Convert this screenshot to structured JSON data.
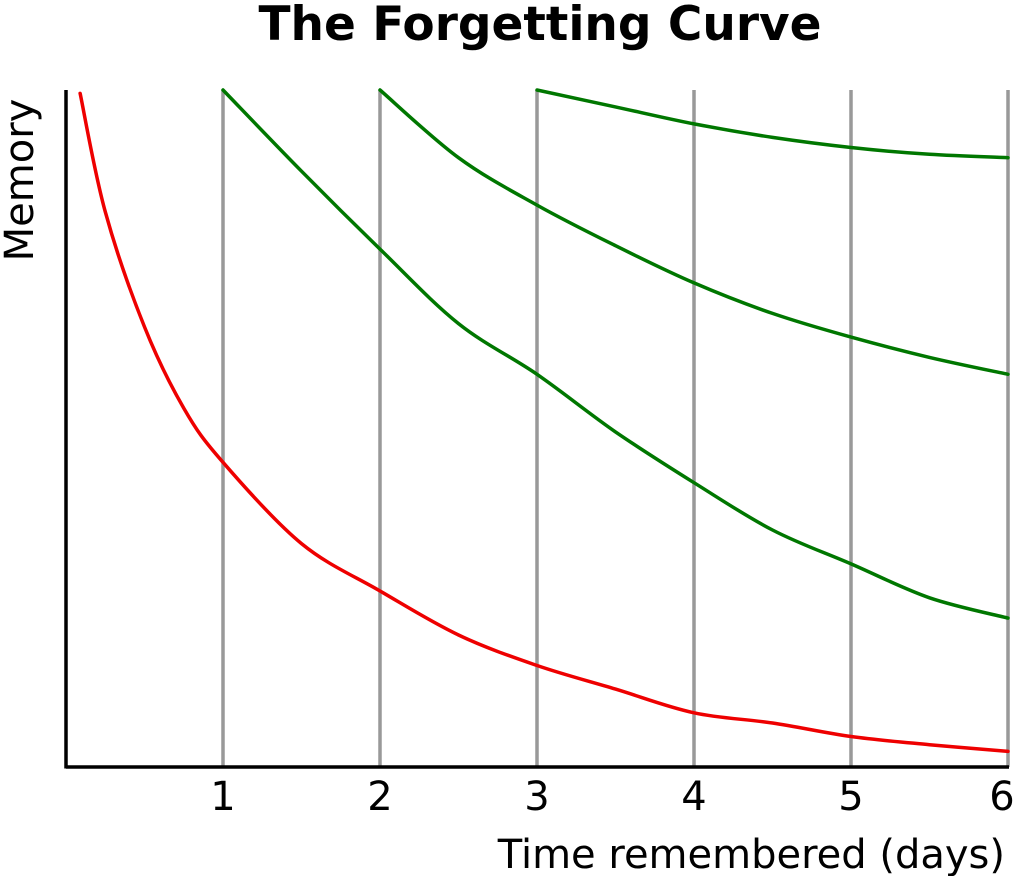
{
  "chart_data": {
    "type": "line",
    "title": "The Forgetting Curve",
    "xlabel": "Time remembered (days)",
    "ylabel": "Memory",
    "xlim": [
      0,
      6
    ],
    "ylim": [
      0,
      100
    ],
    "x_ticks": [
      "1",
      "2",
      "3",
      "4",
      "5",
      "6"
    ],
    "grid": "vertical",
    "legend": "none",
    "colors": {
      "forgetting": "#ee0000",
      "review": "#007700",
      "grid": "#999999",
      "axis": "#000000"
    },
    "series": [
      {
        "x": [
          0.09,
          0.25,
          0.5,
          0.75,
          1,
          1.5,
          2,
          2.5,
          3,
          3.5,
          4,
          4.5,
          5,
          5.5,
          6
        ],
        "y": [
          99.5,
          82,
          65,
          53,
          45,
          33,
          26,
          19.5,
          15,
          11.5,
          8,
          6.5,
          4.5,
          3.3,
          2.3
        ]
      },
      {
        "x": [
          1,
          1.5,
          2,
          2.5,
          3,
          3.5,
          4,
          4.5,
          5,
          5.5,
          6
        ],
        "y": [
          100,
          88,
          76.5,
          65.5,
          58,
          49.5,
          42,
          35,
          30,
          25,
          22
        ]
      },
      {
        "x": [
          2,
          2.5,
          3,
          3.5,
          4,
          4.5,
          5,
          5.5,
          6
        ],
        "y": [
          100,
          90,
          83,
          77,
          71.5,
          67,
          63.5,
          60.5,
          58
        ]
      },
      {
        "x": [
          3,
          3.5,
          4,
          4.5,
          5,
          5.5,
          6
        ],
        "y": [
          100,
          97.5,
          95,
          93,
          91.5,
          90.5,
          90
        ]
      }
    ]
  }
}
